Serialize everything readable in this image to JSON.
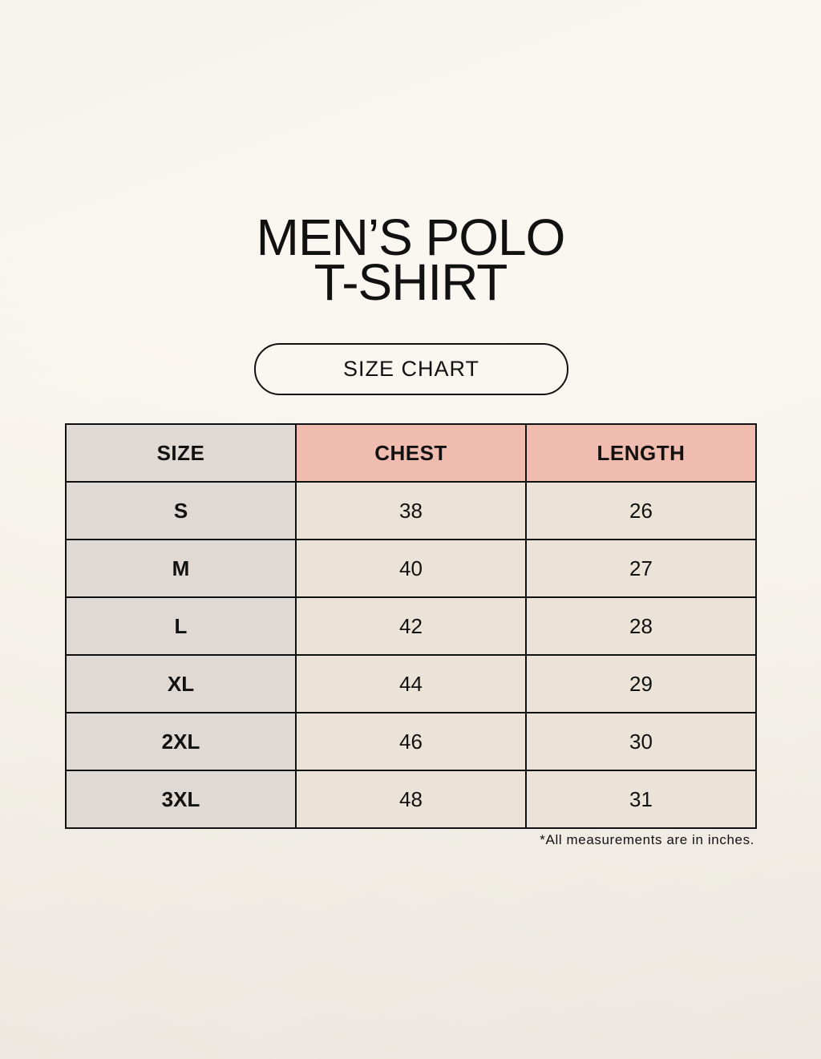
{
  "title": {
    "line1": "MEN’S POLO",
    "line2": "T-SHIRT"
  },
  "subtitle": "SIZE CHART",
  "table": {
    "headers": [
      "SIZE",
      "CHEST",
      "LENGTH"
    ],
    "rows": [
      [
        "S",
        "38",
        "26"
      ],
      [
        "M",
        "40",
        "27"
      ],
      [
        "L",
        "42",
        "28"
      ],
      [
        "XL",
        "44",
        "29"
      ],
      [
        "2XL",
        "46",
        "30"
      ],
      [
        "3XL",
        "48",
        "31"
      ]
    ]
  },
  "note": "*All measurements are in inches.",
  "colors": {
    "size_column": "#e0d8d3",
    "measure_header": "#efbcaf",
    "cell": "#ebe3d8",
    "border": "#111111"
  }
}
